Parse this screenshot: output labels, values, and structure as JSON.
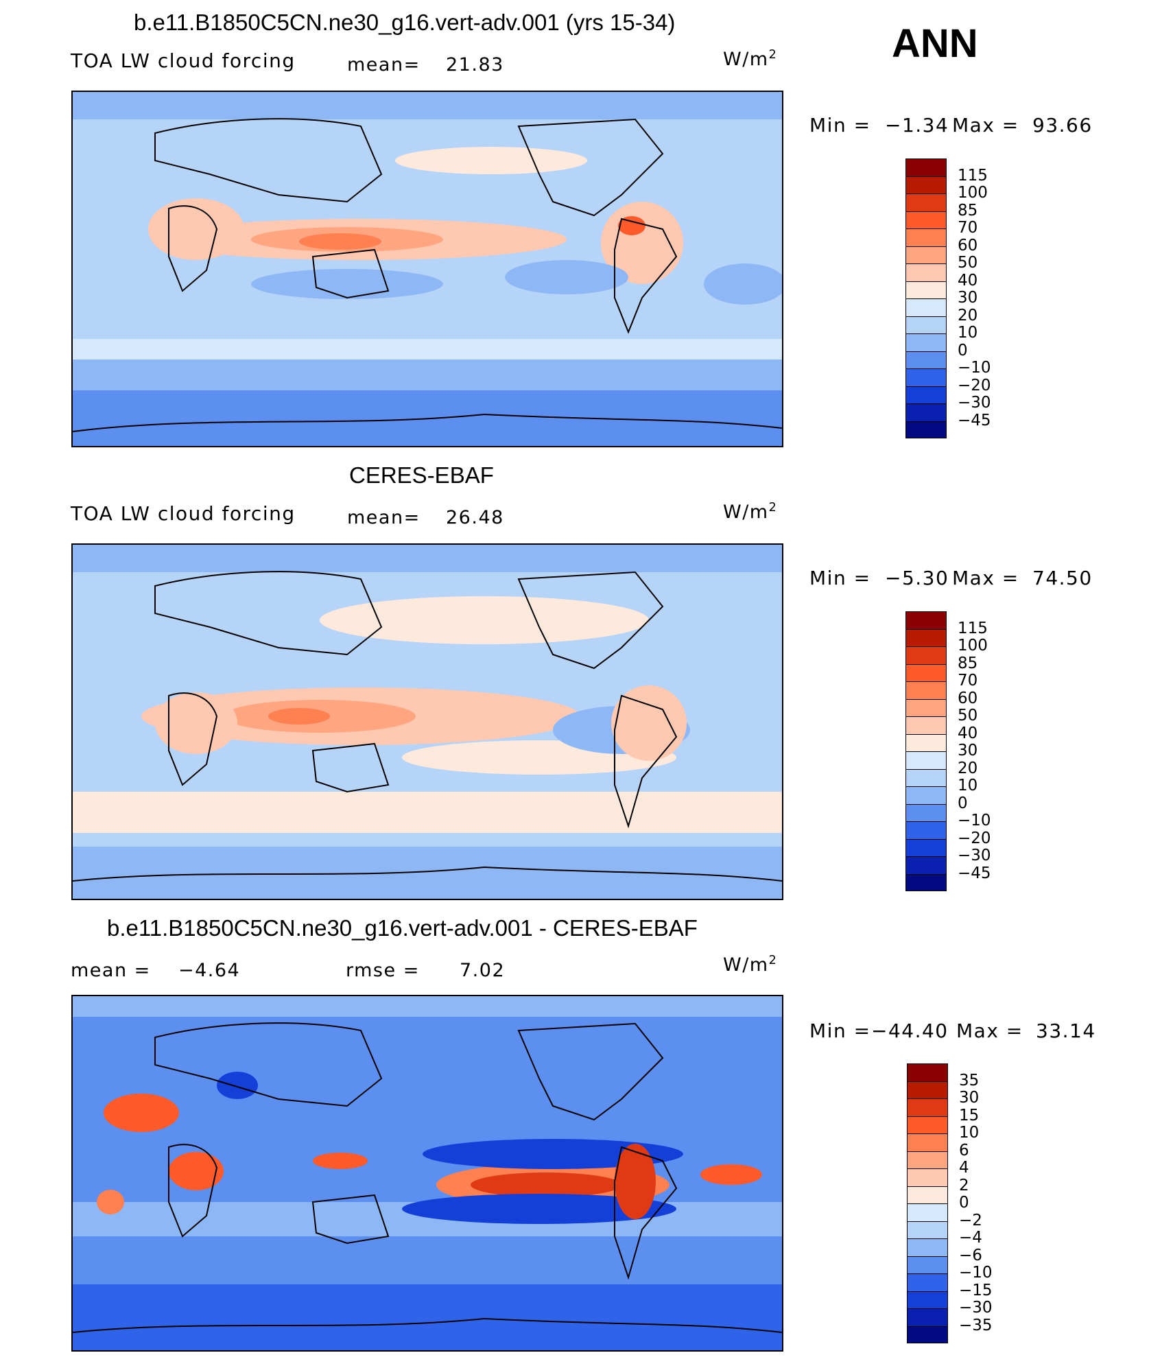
{
  "season": "ANN",
  "panels": [
    {
      "title": "b.e11.B1850C5CN.ne30_g16.vert-adv.001 (yrs 15-34)",
      "left_label": "TOA LW cloud forcing",
      "center_label": "mean=",
      "center_value": "21.83",
      "units": "W/m",
      "units_sup": "2",
      "min_label": "Min =",
      "min_value": "−1.34",
      "max_label": "Max =",
      "max_value": "93.66",
      "colorbar_ticks": [
        "115",
        "100",
        "85",
        "70",
        "60",
        "50",
        "40",
        "30",
        "20",
        "10",
        "0",
        "−10",
        "−20",
        "−30",
        "−45"
      ],
      "colorbar_colors": [
        "#8b0000",
        "#b71c00",
        "#e03a14",
        "#ff5a2a",
        "#ff8050",
        "#ffa680",
        "#ffc8b0",
        "#fdeadd",
        "#d6e8fb",
        "#b6d3f8",
        "#8eb8f5",
        "#5c8ff0",
        "#2f64ea",
        "#1440d8",
        "#0a20b0",
        "#020a82"
      ]
    },
    {
      "title": "CERES-EBAF",
      "left_label": "TOA LW cloud forcing",
      "center_label": "mean=",
      "center_value": "26.48",
      "units": "W/m",
      "units_sup": "2",
      "min_label": "Min =",
      "min_value": "−5.30",
      "max_label": "Max =",
      "max_value": "74.50",
      "colorbar_ticks": [
        "115",
        "100",
        "85",
        "70",
        "60",
        "50",
        "40",
        "30",
        "20",
        "10",
        "0",
        "−10",
        "−20",
        "−30",
        "−45"
      ],
      "colorbar_colors": [
        "#8b0000",
        "#b71c00",
        "#e03a14",
        "#ff5a2a",
        "#ff8050",
        "#ffa680",
        "#ffc8b0",
        "#fdeadd",
        "#d6e8fb",
        "#b6d3f8",
        "#8eb8f5",
        "#5c8ff0",
        "#2f64ea",
        "#1440d8",
        "#0a20b0",
        "#020a82"
      ]
    },
    {
      "title": "b.e11.B1850C5CN.ne30_g16.vert-adv.001 - CERES-EBAF",
      "left_label": "mean =",
      "left_value": "−4.64",
      "center_label": "rmse =",
      "center_value": "7.02",
      "units": "W/m",
      "units_sup": "2",
      "min_label": "Min =",
      "min_value": "−44.40",
      "max_label": "Max =",
      "max_value": "33.14",
      "colorbar_ticks": [
        "35",
        "30",
        "15",
        "10",
        "6",
        "4",
        "2",
        "0",
        "−2",
        "−4",
        "−6",
        "−10",
        "−15",
        "−30",
        "−35"
      ],
      "colorbar_colors": [
        "#8b0000",
        "#b71c00",
        "#e03a14",
        "#ff5a2a",
        "#ff8050",
        "#ffa680",
        "#ffc8b0",
        "#fdeadd",
        "#d6e8fb",
        "#b6d3f8",
        "#8eb8f5",
        "#5c8ff0",
        "#2f64ea",
        "#1440d8",
        "#0a20b0",
        "#020a82"
      ]
    }
  ]
}
